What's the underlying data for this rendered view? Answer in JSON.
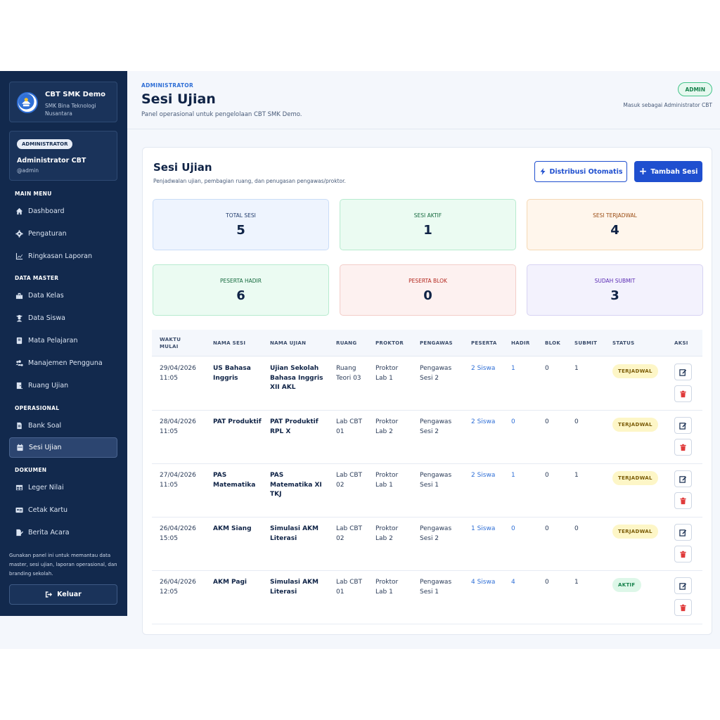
{
  "sidebar": {
    "brand_title": "CBT SMK Demo",
    "brand_subtitle": "SMK Bina Teknologi Nusantara",
    "user_role": "ADMINISTRATOR",
    "user_name": "Administrator CBT",
    "user_handle": "@admin",
    "sections": {
      "main": "MAIN MENU",
      "master": "DATA MASTER",
      "ops": "OPERASIONAL",
      "docs": "DOKUMEN"
    },
    "items": [
      {
        "label": "Dashboard",
        "icon": "home-icon"
      },
      {
        "label": "Pengaturan",
        "icon": "gear-icon"
      },
      {
        "label": "Ringkasan Laporan",
        "icon": "chart-line-icon"
      },
      {
        "label": "Data Kelas",
        "icon": "school-icon"
      },
      {
        "label": "Data Siswa",
        "icon": "user-graduate-icon"
      },
      {
        "label": "Mata Pelajaran",
        "icon": "book-icon"
      },
      {
        "label": "Manajemen Pengguna",
        "icon": "users-cog-icon"
      },
      {
        "label": "Ruang Ujian",
        "icon": "door-icon"
      },
      {
        "label": "Bank Soal",
        "icon": "file-icon"
      },
      {
        "label": "Sesi Ujian",
        "icon": "calendar-icon"
      },
      {
        "label": "Leger Nilai",
        "icon": "table-icon"
      },
      {
        "label": "Cetak Kartu",
        "icon": "id-card-icon"
      },
      {
        "label": "Berita Acara",
        "icon": "file-signature-icon"
      }
    ],
    "note": "Gunakan panel ini untuk memantau data master, sesi ujian, laporan operasional, dan branding sekolah.",
    "logout_label": "Keluar"
  },
  "header": {
    "breadcrumb": "ADMINISTRATOR",
    "title": "Sesi Ujian",
    "subtitle": "Panel operasional untuk pengelolaan CBT SMK Demo.",
    "badge": "ADMIN",
    "login_as": "Masuk sebagai Administrator CBT"
  },
  "card": {
    "title": "Sesi Ujian",
    "subtitle": "Penjadwalan ujian, pembagian ruang, dan penugasan pengawas/proktor.",
    "btn_distribusi": "Distribusi Otomatis",
    "btn_tambah": "Tambah Sesi"
  },
  "stats": [
    {
      "label": "TOTAL SESI",
      "value": "5"
    },
    {
      "label": "SESI AKTIF",
      "value": "1"
    },
    {
      "label": "SESI TERJADWAL",
      "value": "4"
    },
    {
      "label": "PESERTA HADIR",
      "value": "6"
    },
    {
      "label": "PESERTA BLOK",
      "value": "0"
    },
    {
      "label": "SUDAH SUBMIT",
      "value": "3"
    }
  ],
  "table": {
    "headers": {
      "waktu": "WAKTU MULAI",
      "nama_sesi": "NAMA SESI",
      "nama_ujian": "NAMA UJIAN",
      "ruang": "RUANG",
      "proktor": "PROKTOR",
      "pengawas": "PENGAWAS",
      "peserta": "PESERTA",
      "hadir": "HADIR",
      "blok": "BLOK",
      "submit": "SUBMIT",
      "status": "STATUS",
      "aksi": "AKSI"
    },
    "rows": [
      {
        "waktu": "29/04/2026 11:05",
        "sesi": "US Bahasa Inggris",
        "ujian": "Ujian Sekolah Bahasa Inggris XII AKL",
        "ruang": "Ruang Teori 03",
        "proktor": "Proktor Lab 1",
        "pengawas": "Pengawas Sesi 2",
        "peserta": "2 Siswa",
        "hadir": "1",
        "blok": "0",
        "submit": "1",
        "status": "TERJADWAL"
      },
      {
        "waktu": "28/04/2026 11:05",
        "sesi": "PAT Produktif",
        "ujian": "PAT Produktif RPL X",
        "ruang": "Lab CBT 01",
        "proktor": "Proktor Lab 2",
        "pengawas": "Pengawas Sesi 2",
        "peserta": "2 Siswa",
        "hadir": "0",
        "blok": "0",
        "submit": "0",
        "status": "TERJADWAL"
      },
      {
        "waktu": "27/04/2026 11:05",
        "sesi": "PAS Matematika",
        "ujian": "PAS Matematika XI TKJ",
        "ruang": "Lab CBT 02",
        "proktor": "Proktor Lab 1",
        "pengawas": "Pengawas Sesi 1",
        "peserta": "2 Siswa",
        "hadir": "1",
        "blok": "0",
        "submit": "1",
        "status": "TERJADWAL"
      },
      {
        "waktu": "26/04/2026 15:05",
        "sesi": "AKM Siang",
        "ujian": "Simulasi AKM Literasi",
        "ruang": "Lab CBT 02",
        "proktor": "Proktor Lab 2",
        "pengawas": "Pengawas Sesi 2",
        "peserta": "1 Siswa",
        "hadir": "0",
        "blok": "0",
        "submit": "0",
        "status": "TERJADWAL"
      },
      {
        "waktu": "26/04/2026 12:05",
        "sesi": "AKM Pagi",
        "ujian": "Simulasi AKM Literasi",
        "ruang": "Lab CBT 01",
        "proktor": "Proktor Lab 1",
        "pengawas": "Pengawas Sesi 1",
        "peserta": "4 Siswa",
        "hadir": "4",
        "blok": "0",
        "submit": "1",
        "status": "AKTIF"
      }
    ]
  },
  "colors": {
    "sidebar_bg": "#12294d",
    "primary": "#1f4fcf",
    "danger": "#e03b3b"
  }
}
